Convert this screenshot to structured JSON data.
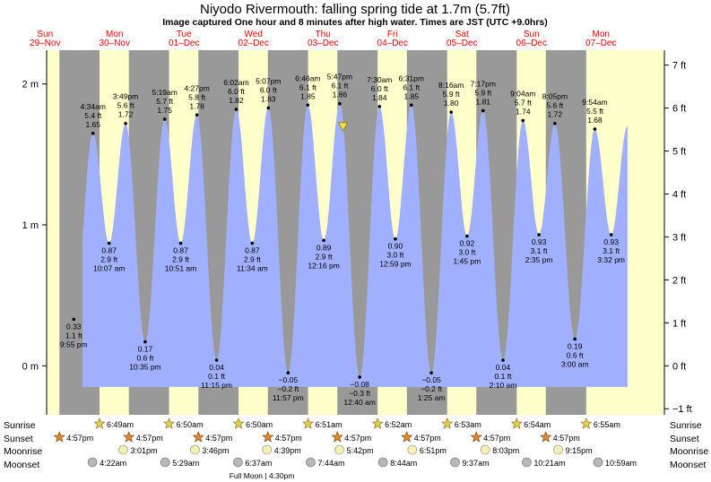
{
  "title": "Niyodo Rivermouth: falling  spring tide at 1.7m (5.7ft)",
  "subtitle": "Image captured One hour and 8 minutes after high water. Times are JST (UTC +9.0hrs)",
  "colors": {
    "day": "#ffffcc",
    "night": "#999999",
    "water": "#a0b0ff",
    "day_labels": "#ff0000",
    "sun": "#e8cf4a",
    "sunset": "#e0882a",
    "moonrise": "#f6f0b8",
    "moonset": "#b8b8b8",
    "current_marker": "#f3e23a"
  },
  "chart_data": {
    "type": "area",
    "days": [
      {
        "dow": "Sun",
        "date": "29–Nov"
      },
      {
        "dow": "Mon",
        "date": "30–Nov"
      },
      {
        "dow": "Tue",
        "date": "01–Dec"
      },
      {
        "dow": "Wed",
        "date": "02–Dec"
      },
      {
        "dow": "Thu",
        "date": "03–Dec"
      },
      {
        "dow": "Fri",
        "date": "04–Dec"
      },
      {
        "dow": "Sat",
        "date": "05–Dec"
      },
      {
        "dow": "Sun",
        "date": "06–Dec"
      },
      {
        "dow": "Mon",
        "date": "07–Dec"
      }
    ],
    "y_axis_left": {
      "unit": "m",
      "ticks": [
        {
          "v": 0,
          "label": "0 m"
        },
        {
          "v": 1,
          "label": "1 m"
        },
        {
          "v": 2,
          "label": "2 m"
        }
      ]
    },
    "y_axis_right": {
      "unit": "ft",
      "ticks": [
        {
          "v": -1,
          "label": "−1 ft"
        },
        {
          "v": 0,
          "label": "0 ft"
        },
        {
          "v": 1,
          "label": "1 ft"
        },
        {
          "v": 2,
          "label": "2 ft"
        },
        {
          "v": 3,
          "label": "3 ft"
        },
        {
          "v": 4,
          "label": "4 ft"
        },
        {
          "v": 5,
          "label": "5 ft"
        },
        {
          "v": 6,
          "label": "6 ft"
        },
        {
          "v": 7,
          "label": "7 ft"
        }
      ]
    },
    "ylim_m": [
      -0.35,
      2.25
    ],
    "tides": [
      {
        "type": "low",
        "day": 0,
        "time": "9:55 pm",
        "m": 0.33,
        "m_label": "0.33 m",
        "ft_label": "1.1 ft"
      },
      {
        "type": "high",
        "day": 1,
        "time": "4:34 am",
        "m": 1.65,
        "m_label": "1.65 m",
        "ft_label": "5.4 ft"
      },
      {
        "type": "low",
        "day": 1,
        "time": "10:07 am",
        "m": 0.87,
        "m_label": "0.87 m",
        "ft_label": "2.9 ft"
      },
      {
        "type": "high",
        "day": 1,
        "time": "3:49 pm",
        "m": 1.72,
        "m_label": "1.72 m",
        "ft_label": "5.6 ft"
      },
      {
        "type": "low",
        "day": 1,
        "time": "10:35 pm",
        "m": 0.17,
        "m_label": "0.17 m",
        "ft_label": "0.6 ft"
      },
      {
        "type": "high",
        "day": 2,
        "time": "5:19 am",
        "m": 1.75,
        "m_label": "1.75 m",
        "ft_label": "5.7 ft"
      },
      {
        "type": "low",
        "day": 2,
        "time": "10:51 am",
        "m": 0.87,
        "m_label": "0.87 m",
        "ft_label": "2.9 ft"
      },
      {
        "type": "high",
        "day": 2,
        "time": "4:27 pm",
        "m": 1.78,
        "m_label": "1.78 m",
        "ft_label": "5.8 ft"
      },
      {
        "type": "low",
        "day": 2,
        "time": "11:15 pm",
        "m": 0.04,
        "m_label": "0.04 m",
        "ft_label": "0.1 ft"
      },
      {
        "type": "high",
        "day": 3,
        "time": "6:02 am",
        "m": 1.82,
        "m_label": "1.82 m",
        "ft_label": "6.0 ft"
      },
      {
        "type": "low",
        "day": 3,
        "time": "11:34 am",
        "m": 0.87,
        "m_label": "0.87 m",
        "ft_label": "2.9 ft"
      },
      {
        "type": "high",
        "day": 3,
        "time": "5:07 pm",
        "m": 1.83,
        "m_label": "1.83 m",
        "ft_label": "6.0 ft"
      },
      {
        "type": "low",
        "day": 3,
        "time": "11:57 pm",
        "m": -0.05,
        "m_label": "−0.05 m",
        "ft_label": "−0.2 ft"
      },
      {
        "type": "high",
        "day": 4,
        "time": "6:46 am",
        "m": 1.85,
        "m_label": "1.85 m",
        "ft_label": "6.1 ft"
      },
      {
        "type": "low",
        "day": 4,
        "time": "12:16 pm",
        "m": 0.89,
        "m_label": "0.89 m",
        "ft_label": "2.9 ft"
      },
      {
        "type": "high",
        "day": 4,
        "time": "5:47 pm",
        "m": 1.86,
        "m_label": "1.86 m",
        "ft_label": "6.1 ft"
      },
      {
        "type": "low",
        "day": 5,
        "time": "12:40 am",
        "m": -0.08,
        "m_label": "−0.08 m",
        "ft_label": "−0.3 ft"
      },
      {
        "type": "high",
        "day": 5,
        "time": "7:30 am",
        "m": 1.84,
        "m_label": "1.84 m",
        "ft_label": "6.0 ft"
      },
      {
        "type": "low",
        "day": 5,
        "time": "12:59 pm",
        "m": 0.9,
        "m_label": "0.90 m",
        "ft_label": "3.0 ft"
      },
      {
        "type": "high",
        "day": 5,
        "time": "6:31 pm",
        "m": 1.85,
        "m_label": "1.85 m",
        "ft_label": "6.1 ft"
      },
      {
        "type": "low",
        "day": 6,
        "time": "1:25 am",
        "m": -0.05,
        "m_label": "−0.05 m",
        "ft_label": "−0.2 ft"
      },
      {
        "type": "high",
        "day": 6,
        "time": "8:16 am",
        "m": 1.8,
        "m_label": "1.80 m",
        "ft_label": "5.9 ft"
      },
      {
        "type": "low",
        "day": 6,
        "time": "1:45 pm",
        "m": 0.92,
        "m_label": "0.92 m",
        "ft_label": "3.0 ft"
      },
      {
        "type": "high",
        "day": 6,
        "time": "7:17 pm",
        "m": 1.81,
        "m_label": "1.81 m",
        "ft_label": "5.9 ft"
      },
      {
        "type": "low",
        "day": 7,
        "time": "2:10 am",
        "m": 0.04,
        "m_label": "0.04 m",
        "ft_label": "0.1 ft"
      },
      {
        "type": "high",
        "day": 7,
        "time": "9:04 am",
        "m": 1.74,
        "m_label": "1.74 m",
        "ft_label": "5.7 ft"
      },
      {
        "type": "low",
        "day": 7,
        "time": "2:35 pm",
        "m": 0.93,
        "m_label": "0.93 m",
        "ft_label": "3.1 ft"
      },
      {
        "type": "high",
        "day": 7,
        "time": "8:05 pm",
        "m": 1.72,
        "m_label": "1.72 m",
        "ft_label": "5.6 ft"
      },
      {
        "type": "low",
        "day": 8,
        "time": "3:00 am",
        "m": 0.19,
        "m_label": "0.19 m",
        "ft_label": "0.6 ft"
      },
      {
        "type": "high",
        "day": 8,
        "time": "9:54 am",
        "m": 1.68,
        "m_label": "1.68 m",
        "ft_label": "5.5 ft"
      },
      {
        "type": "low",
        "day": 8,
        "time": "3:32 pm",
        "m": 0.93,
        "m_label": "0.93 m",
        "ft_label": "3.1 ft"
      }
    ],
    "current": {
      "day": 4,
      "time": "6:55 pm",
      "m": 1.7
    },
    "sunrise": [
      {
        "day": 1,
        "time": "6:49am"
      },
      {
        "day": 2,
        "time": "6:50am"
      },
      {
        "day": 3,
        "time": "6:50am"
      },
      {
        "day": 4,
        "time": "6:51am"
      },
      {
        "day": 5,
        "time": "6:52am"
      },
      {
        "day": 6,
        "time": "6:53am"
      },
      {
        "day": 7,
        "time": "6:54am"
      },
      {
        "day": 8,
        "time": "6:55am"
      }
    ],
    "sunset": [
      {
        "day": 0,
        "time": "4:57pm"
      },
      {
        "day": 1,
        "time": "4:57pm"
      },
      {
        "day": 2,
        "time": "4:57pm"
      },
      {
        "day": 3,
        "time": "4:57pm"
      },
      {
        "day": 4,
        "time": "4:57pm"
      },
      {
        "day": 5,
        "time": "4:57pm"
      },
      {
        "day": 6,
        "time": "4:57pm"
      },
      {
        "day": 7,
        "time": "4:57pm"
      }
    ],
    "moonrise": [
      {
        "day": 1,
        "time": "3:01pm"
      },
      {
        "day": 2,
        "time": "3:46pm"
      },
      {
        "day": 3,
        "time": "4:39pm"
      },
      {
        "day": 4,
        "time": "5:42pm"
      },
      {
        "day": 5,
        "time": "6:51pm"
      },
      {
        "day": 6,
        "time": "8:03pm"
      },
      {
        "day": 7,
        "time": "9:15pm"
      }
    ],
    "moonset": [
      {
        "day": 1,
        "time": "4:22am"
      },
      {
        "day": 2,
        "time": "5:29am"
      },
      {
        "day": 3,
        "time": "6:37am"
      },
      {
        "day": 4,
        "time": "7:44am"
      },
      {
        "day": 5,
        "time": "8:44am"
      },
      {
        "day": 6,
        "time": "9:37am"
      },
      {
        "day": 7,
        "time": "10:21am"
      },
      {
        "day": 8,
        "time": "10:59am"
      }
    ],
    "row_labels": {
      "sunrise": "Sunrise",
      "sunset": "Sunset",
      "moonrise": "Moonrise",
      "moonset": "Moonset"
    },
    "full_moon": "Full Moon | 4:30pm"
  }
}
